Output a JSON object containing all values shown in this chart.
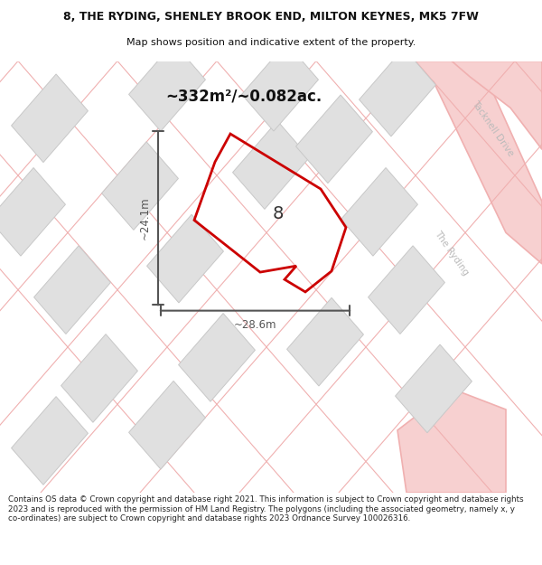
{
  "title": "8, THE RYDING, SHENLEY BROOK END, MILTON KEYNES, MK5 7FW",
  "subtitle": "Map shows position and indicative extent of the property.",
  "area_label": "~332m²/~0.082ac.",
  "width_label": "~28.6m",
  "height_label": "~24.1m",
  "number_label": "8",
  "road_label1": "Tacknell Drive",
  "road_label2": "The Ryding",
  "footer": "Contains OS data © Crown copyright and database right 2021. This information is subject to Crown copyright and database rights 2023 and is reproduced with the permission of HM Land Registry. The polygons (including the associated geometry, namely x, y co-ordinates) are subject to Crown copyright and database rights 2023 Ordnance Survey 100026316.",
  "bg_color": "#ffffff",
  "map_bg": "#f8f8f8",
  "title_color": "#111111",
  "footer_color": "#222222",
  "red_color": "#cc0000",
  "road_line_color": "#f0b0b0",
  "building_fill": "#e0e0e0",
  "building_edge": "#c8c8c8",
  "dim_color": "#555555",
  "road_text_color": "#bbbbbb",
  "divider_color": "#cccccc"
}
